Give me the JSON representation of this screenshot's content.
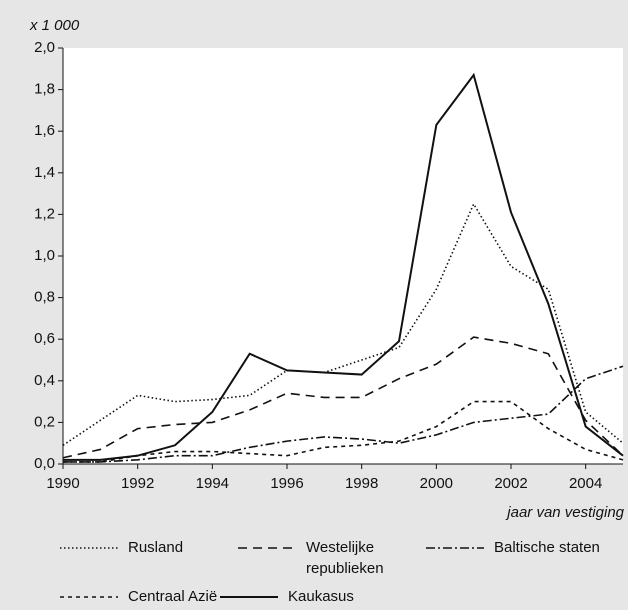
{
  "chart_data": {
    "type": "line",
    "y_unit_label": "x 1 000",
    "x_label": "jaar van vestiging",
    "x": [
      1990,
      1991,
      1992,
      1993,
      1994,
      1995,
      1996,
      1997,
      1998,
      1999,
      2000,
      2001,
      2002,
      2003,
      2004,
      2005
    ],
    "xlim": [
      1990,
      2005
    ],
    "xticks": [
      1990,
      1992,
      1994,
      1996,
      1998,
      2000,
      2002,
      2004
    ],
    "ylim": [
      0,
      2.0
    ],
    "yticks": [
      {
        "value": 0,
        "label": "0,0"
      },
      {
        "value": 0.2,
        "label": "0,2"
      },
      {
        "value": 0.4,
        "label": "0,4"
      },
      {
        "value": 0.6,
        "label": "0,6"
      },
      {
        "value": 0.8,
        "label": "0,8"
      },
      {
        "value": 1.0,
        "label": "1,0"
      },
      {
        "value": 1.2,
        "label": "1,2"
      },
      {
        "value": 1.4,
        "label": "1,4"
      },
      {
        "value": 1.6,
        "label": "1,6"
      },
      {
        "value": 1.8,
        "label": "1,8"
      },
      {
        "value": 2.0,
        "label": "2,0"
      }
    ],
    "grid": false,
    "series": [
      {
        "name": "Rusland",
        "color": "#111111",
        "style": "dotted",
        "values": [
          0.09,
          0.21,
          0.33,
          0.3,
          0.31,
          0.33,
          0.45,
          0.44,
          0.5,
          0.56,
          0.84,
          1.25,
          0.95,
          0.84,
          0.25,
          0.1
        ]
      },
      {
        "name": "Westelijke republieken",
        "color": "#111111",
        "style": "dashed",
        "values": [
          0.03,
          0.07,
          0.17,
          0.19,
          0.2,
          0.26,
          0.34,
          0.32,
          0.32,
          0.41,
          0.48,
          0.61,
          0.58,
          0.53,
          0.21,
          0.04
        ]
      },
      {
        "name": "Baltische staten",
        "color": "#111111",
        "style": "dashdot",
        "values": [
          0.01,
          0.01,
          0.02,
          0.04,
          0.04,
          0.08,
          0.11,
          0.13,
          0.12,
          0.1,
          0.14,
          0.2,
          0.22,
          0.24,
          0.41,
          0.47
        ]
      },
      {
        "name": "Centraal Azië",
        "color": "#111111",
        "style": "shortdash",
        "values": [
          0.01,
          0.01,
          0.04,
          0.06,
          0.06,
          0.05,
          0.04,
          0.08,
          0.09,
          0.11,
          0.18,
          0.3,
          0.3,
          0.17,
          0.07,
          0.02
        ]
      },
      {
        "name": "Kaukasus",
        "color": "#111111",
        "style": "solid",
        "values": [
          0.02,
          0.02,
          0.04,
          0.09,
          0.25,
          0.53,
          0.45,
          0.44,
          0.43,
          0.59,
          1.63,
          1.87,
          1.21,
          0.77,
          0.18,
          0.04
        ]
      }
    ]
  }
}
